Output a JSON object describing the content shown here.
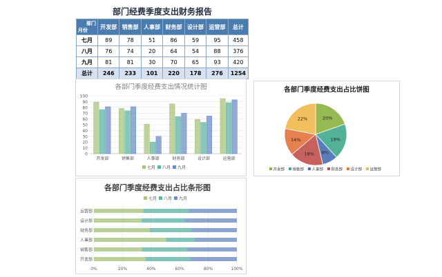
{
  "report": {
    "title": "部门经费季度支出财务报告",
    "corner_top": "部门",
    "corner_bottom": "月份",
    "columns": [
      "开发部",
      "销售部",
      "人事部",
      "财务部",
      "设计部",
      "运营部",
      "总计"
    ],
    "rows": [
      {
        "label": "七月",
        "values": [
          "89",
          "78",
          "51",
          "86",
          "59",
          "95",
          "458"
        ]
      },
      {
        "label": "八月",
        "values": [
          "76",
          "74",
          "20",
          "64",
          "54",
          "88",
          "376"
        ]
      },
      {
        "label": "九月",
        "values": [
          "81",
          "81",
          "30",
          "70",
          "65",
          "93",
          "420"
        ]
      },
      {
        "label": "总计",
        "values": [
          "246",
          "233",
          "101",
          "220",
          "178",
          "276",
          "1254"
        ]
      }
    ]
  },
  "colors": {
    "jul": "#a9c47f",
    "aug": "#5fb5a6",
    "sep": "#6d8fc7",
    "pie": [
      "#8ab33f",
      "#3fa88c",
      "#4a6fb5",
      "#c0504d",
      "#e2733c",
      "#f0b84a"
    ]
  },
  "chart_data": [
    {
      "type": "bar",
      "title": "各部门季度经费支出情况统计图",
      "categories": [
        "开发部",
        "销售部",
        "人事部",
        "财务部",
        "设计部",
        "运营部"
      ],
      "series": [
        {
          "name": "七月",
          "values": [
            89,
            78,
            51,
            86,
            59,
            95
          ]
        },
        {
          "name": "八月",
          "values": [
            76,
            74,
            20,
            64,
            54,
            88
          ]
        },
        {
          "name": "九月",
          "values": [
            81,
            81,
            30,
            70,
            65,
            93
          ]
        }
      ],
      "ylim": [
        0,
        100
      ],
      "yticks": [
        "0",
        "10",
        "20",
        "30",
        "40",
        "50",
        "60",
        "70",
        "80",
        "90",
        "100"
      ],
      "legend": "bottom",
      "grid": true
    },
    {
      "type": "pie",
      "title": "各部门季度经费支出占比饼图",
      "categories": [
        "开发部",
        "销售部",
        "人事部",
        "财务部",
        "设计部",
        "运营部"
      ],
      "values": [
        246,
        233,
        101,
        220,
        178,
        276
      ],
      "labels": [
        "20%",
        "19%",
        "8%",
        "18%",
        "14%",
        "22%"
      ],
      "legend": "bottom"
    },
    {
      "type": "bar",
      "orientation": "horizontal-stacked-100",
      "title": "各部门季度经费支出占比条形图",
      "categories": [
        "开发部",
        "销售部",
        "人事部",
        "财务部",
        "设计部",
        "运营部"
      ],
      "series": [
        {
          "name": "七月",
          "values": [
            89,
            78,
            51,
            86,
            59,
            95
          ]
        },
        {
          "name": "八月",
          "values": [
            76,
            74,
            20,
            64,
            54,
            88
          ]
        },
        {
          "name": "九月",
          "values": [
            81,
            81,
            30,
            70,
            65,
            93
          ]
        }
      ],
      "xticks": [
        "0%",
        "20%",
        "40%",
        "60%",
        "80%",
        "100%"
      ],
      "legend": "top"
    }
  ]
}
